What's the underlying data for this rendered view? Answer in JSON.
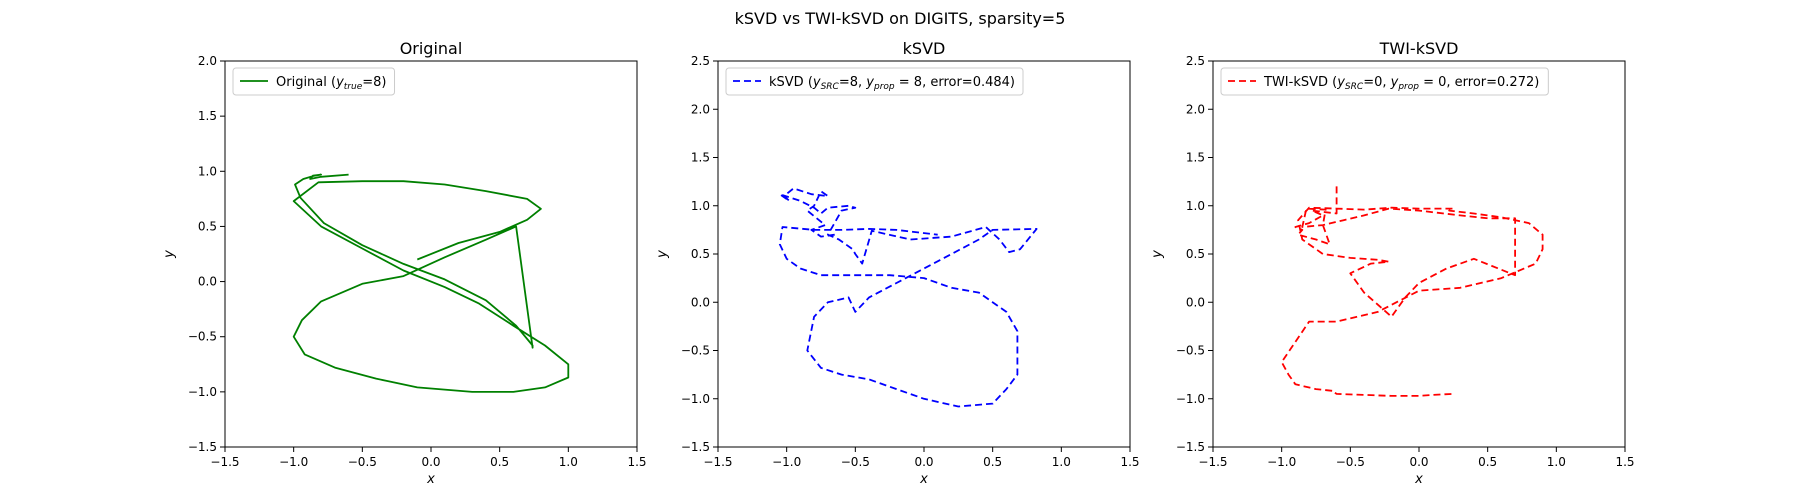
{
  "figure_title": "kSVD vs TWI-kSVD on DIGITS, sparsity=5",
  "chart_data": [
    {
      "type": "line",
      "title": "Original",
      "xlabel": "x",
      "ylabel": "y",
      "xlim": [
        -1.5,
        1.5
      ],
      "ylim": [
        -1.5,
        2.0
      ],
      "xticks": [
        "−1.5",
        "−1.0",
        "−0.5",
        "0.0",
        "0.5",
        "1.0",
        "1.5"
      ],
      "yticks": [
        "−1.5",
        "−1.0",
        "−0.5",
        "0.0",
        "0.5",
        "1.0",
        "1.5",
        "2.0"
      ],
      "legend_position": "top-left",
      "legend": [
        {
          "text": "Original ("
        },
        {
          "text": "y",
          "italic": true
        },
        {
          "text": "true",
          "sub": true
        },
        {
          "text": "=8)"
        }
      ],
      "series": [
        {
          "color": "#008000",
          "dash": "solid",
          "x": [
            -0.6,
            -0.8,
            -0.88,
            -0.86,
            -0.8,
            -0.85,
            -0.93,
            -0.99,
            -0.95,
            -0.78,
            -0.5,
            -0.2,
            0.1,
            0.4,
            0.62,
            0.74,
            0.74,
            0.62,
            0.4,
            0.1,
            -0.2,
            -0.5,
            -0.8,
            -0.94,
            -1.0,
            -0.92,
            -0.7,
            -0.4,
            -0.1,
            0.3,
            0.6,
            0.83,
            1.0,
            1.0,
            0.83,
            0.6,
            0.35,
            0.1,
            -0.2,
            -0.5,
            -0.8,
            -1.0,
            -0.82,
            -0.5,
            -0.2,
            0.1,
            0.4,
            0.7,
            0.8,
            0.7,
            0.5,
            0.2,
            -0.1
          ],
          "y": [
            0.97,
            0.95,
            0.93,
            0.96,
            0.97,
            0.96,
            0.93,
            0.88,
            0.76,
            0.53,
            0.33,
            0.16,
            0.02,
            -0.17,
            -0.4,
            -0.58,
            -0.6,
            0.5,
            0.38,
            0.22,
            0.05,
            -0.02,
            -0.18,
            -0.35,
            -0.5,
            -0.66,
            -0.78,
            -0.88,
            -0.96,
            -1.0,
            -1.0,
            -0.96,
            -0.87,
            -0.75,
            -0.58,
            -0.4,
            -0.2,
            -0.05,
            0.1,
            0.3,
            0.5,
            0.73,
            0.9,
            0.91,
            0.91,
            0.88,
            0.82,
            0.75,
            0.66,
            0.56,
            0.45,
            0.35,
            0.2
          ]
        }
      ]
    },
    {
      "type": "line",
      "title": "kSVD",
      "xlabel": "x",
      "ylabel": "y",
      "xlim": [
        -1.5,
        1.5
      ],
      "ylim": [
        -1.5,
        2.5
      ],
      "xticks": [
        "−1.5",
        "−1.0",
        "−0.5",
        "0.0",
        "0.5",
        "1.0",
        "1.5"
      ],
      "yticks": [
        "−1.5",
        "−1.0",
        "−0.5",
        "0.0",
        "0.5",
        "1.0",
        "1.5",
        "2.0",
        "2.5"
      ],
      "legend_position": "top-left",
      "legend": [
        {
          "text": "kSVD ("
        },
        {
          "text": "y",
          "italic": true
        },
        {
          "text": "SRC",
          "sub": true
        },
        {
          "text": "=8, "
        },
        {
          "text": "y",
          "italic": true
        },
        {
          "text": "prop",
          "sub": true
        },
        {
          "text": " = 8, error=0.484)"
        }
      ],
      "series": [
        {
          "color": "#0000ff",
          "dash": "dashed",
          "x": [
            -0.65,
            -0.75,
            -0.82,
            -0.72,
            -0.85,
            -0.8,
            -0.75,
            -0.7,
            -0.82,
            -0.95,
            -1.02,
            -0.98,
            -1.05,
            -0.9,
            -0.8,
            -0.75,
            -0.7,
            -0.55,
            -0.5,
            -0.6,
            -0.7,
            -0.62,
            -0.57,
            -0.52,
            -0.5,
            -0.45,
            -0.38,
            -0.1,
            0.2,
            0.45,
            0.55,
            0.62,
            0.7,
            0.82,
            0.5,
            0.4,
            0.2,
            0.0,
            -0.2,
            -0.4,
            -0.5,
            -0.55,
            -0.7,
            -0.8,
            -0.85,
            -0.75,
            -0.6,
            -0.4,
            -0.2,
            0.0,
            0.25,
            0.5,
            0.6,
            0.68,
            0.68,
            0.6,
            0.4,
            0.2,
            0.0,
            -0.25,
            -0.5,
            -0.75,
            -0.9,
            -1.0,
            -1.05,
            -1.03,
            -0.8,
            -0.6,
            -0.4,
            -0.2,
            0.1
          ],
          "y": [
            0.7,
            0.68,
            0.75,
            0.8,
            0.95,
            1.0,
            1.15,
            1.1,
            1.12,
            1.18,
            1.1,
            1.05,
            1.12,
            1.05,
            0.98,
            0.92,
            0.98,
            1.0,
            0.98,
            0.95,
            0.7,
            0.65,
            0.6,
            0.55,
            0.5,
            0.4,
            0.74,
            0.65,
            0.68,
            0.78,
            0.65,
            0.52,
            0.55,
            0.76,
            0.75,
            0.65,
            0.5,
            0.35,
            0.2,
            0.05,
            -0.1,
            0.05,
            0.0,
            -0.15,
            -0.5,
            -0.68,
            -0.75,
            -0.8,
            -0.9,
            -1.0,
            -1.08,
            -1.05,
            -0.9,
            -0.75,
            -0.3,
            -0.1,
            0.1,
            0.15,
            0.25,
            0.28,
            0.28,
            0.28,
            0.35,
            0.45,
            0.6,
            0.78,
            0.75,
            0.75,
            0.76,
            0.75,
            0.7
          ]
        }
      ]
    },
    {
      "type": "line",
      "title": "TWI-kSVD",
      "xlabel": "x",
      "ylabel": "y",
      "xlim": [
        -1.5,
        1.5
      ],
      "ylim": [
        -1.5,
        2.5
      ],
      "xticks": [
        "−1.5",
        "−1.0",
        "−0.5",
        "0.0",
        "0.5",
        "1.0",
        "1.5"
      ],
      "yticks": [
        "−1.5",
        "−1.0",
        "−0.5",
        "0.0",
        "0.5",
        "1.0",
        "1.5",
        "2.0",
        "2.5"
      ],
      "legend_position": "top-left",
      "legend": [
        {
          "text": "TWI-kSVD ("
        },
        {
          "text": "y",
          "italic": true
        },
        {
          "text": "SRC",
          "sub": true
        },
        {
          "text": "=0, "
        },
        {
          "text": "y",
          "italic": true
        },
        {
          "text": "prop",
          "sub": true
        },
        {
          "text": " = 0, error=0.272)"
        }
      ],
      "series": [
        {
          "color": "#ff0000",
          "dash": "dashed",
          "x": [
            -0.6,
            -0.6,
            -0.6,
            -0.78,
            -0.7,
            -0.8,
            -0.9,
            -0.85,
            -0.88,
            -0.75,
            -0.65,
            -0.7,
            -0.68,
            -0.82,
            -0.85,
            -0.7,
            -0.55,
            -0.4,
            -0.22,
            0.0,
            0.3,
            0.5,
            0.7,
            0.7,
            0.4,
            0.2,
            0.0,
            -0.1,
            -0.2,
            -0.4,
            -0.5,
            -0.35,
            -0.22,
            -0.3,
            -0.5,
            -0.7,
            -0.85,
            -0.88,
            -0.8,
            -0.6,
            -0.4,
            -0.2,
            0.0,
            0.15,
            0.25,
            0.22,
            0.4,
            0.6,
            0.8,
            0.9,
            0.9,
            0.85,
            0.6,
            0.3,
            0.0,
            -0.3,
            -0.6,
            -0.8,
            -1.0,
            -0.95,
            -0.9,
            -0.75,
            -0.62,
            -0.62,
            -0.6,
            -0.4,
            -0.2,
            0.0,
            0.1,
            0.25,
            0.25
          ],
          "y": [
            1.2,
            0.95,
            0.92,
            0.95,
            0.9,
            0.82,
            0.78,
            0.75,
            0.7,
            0.65,
            0.6,
            0.8,
            0.96,
            0.97,
            0.78,
            0.8,
            0.85,
            0.9,
            0.97,
            0.95,
            0.9,
            0.87,
            0.87,
            0.28,
            0.45,
            0.35,
            0.2,
            0.05,
            -0.15,
            0.1,
            0.3,
            0.4,
            0.42,
            0.44,
            0.46,
            0.5,
            0.65,
            0.85,
            0.98,
            0.97,
            0.96,
            0.98,
            0.97,
            0.97,
            0.97,
            0.95,
            0.92,
            0.88,
            0.82,
            0.7,
            0.55,
            0.4,
            0.25,
            0.15,
            0.12,
            -0.1,
            -0.2,
            -0.2,
            -0.62,
            -0.75,
            -0.85,
            -0.9,
            -0.92,
            -0.93,
            -0.95,
            -0.96,
            -0.97,
            -0.97,
            -0.96,
            -0.95,
            -0.95
          ]
        }
      ]
    }
  ]
}
